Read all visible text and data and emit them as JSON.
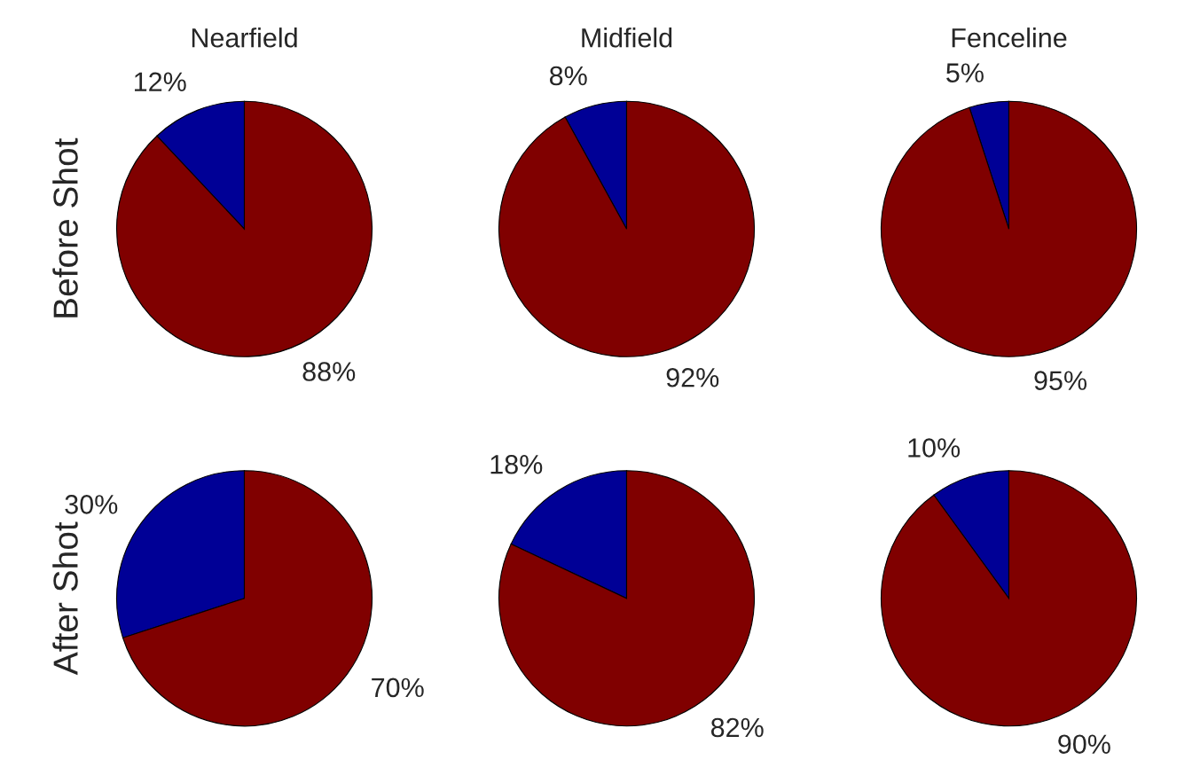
{
  "chart_data": [
    {
      "type": "pie",
      "title": "Nearfield",
      "ylabel": "Before Shot",
      "categories": [
        null,
        null
      ],
      "values": [
        12,
        88
      ],
      "colors": [
        "#000096",
        "#800000"
      ],
      "value_labels": [
        "12%",
        "88%"
      ]
    },
    {
      "type": "pie",
      "title": "Midfield",
      "categories": [
        null,
        null
      ],
      "values": [
        8,
        92
      ],
      "colors": [
        "#000096",
        "#800000"
      ],
      "value_labels": [
        "8%",
        "92%"
      ]
    },
    {
      "type": "pie",
      "title": "Fenceline",
      "categories": [
        null,
        null
      ],
      "values": [
        5,
        95
      ],
      "colors": [
        "#000096",
        "#800000"
      ],
      "value_labels": [
        "5%",
        "95%"
      ]
    },
    {
      "type": "pie",
      "ylabel": "After Shot",
      "categories": [
        null,
        null
      ],
      "values": [
        30,
        70
      ],
      "colors": [
        "#000096",
        "#800000"
      ],
      "value_labels": [
        "30%",
        "70%"
      ]
    },
    {
      "type": "pie",
      "categories": [
        null,
        null
      ],
      "values": [
        18,
        82
      ],
      "colors": [
        "#000096",
        "#800000"
      ],
      "value_labels": [
        "18%",
        "82%"
      ]
    },
    {
      "type": "pie",
      "categories": [
        null,
        null
      ],
      "values": [
        10,
        90
      ],
      "colors": [
        "#000096",
        "#800000"
      ],
      "value_labels": [
        "10%",
        "90%"
      ]
    }
  ]
}
